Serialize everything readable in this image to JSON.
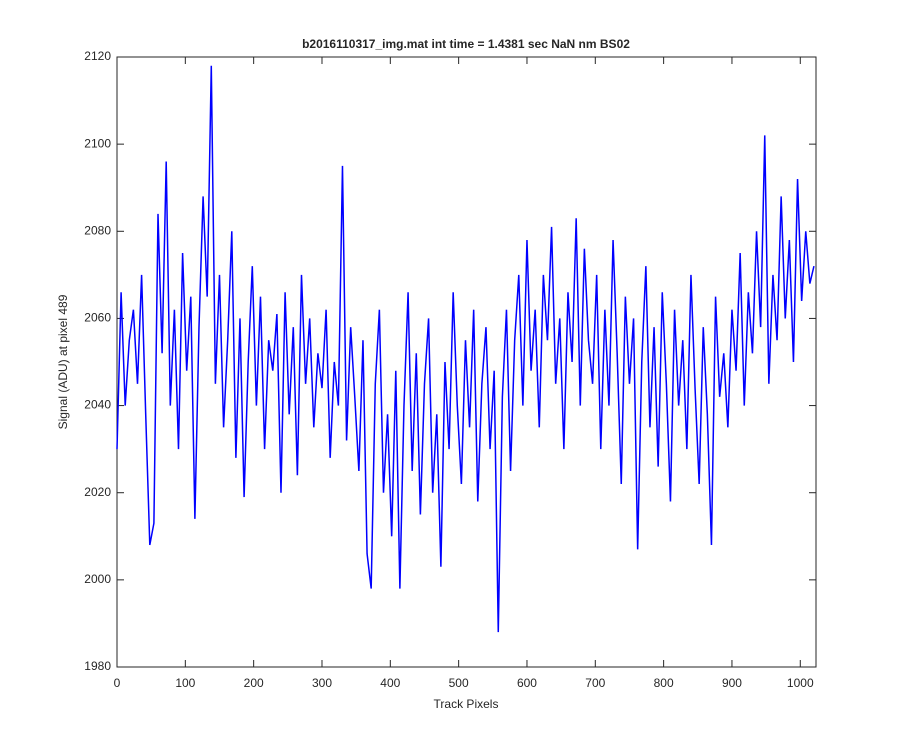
{
  "chart_data": {
    "type": "line",
    "title": "b2016110317_img.mat int time = 1.4381 sec  NaN nm BS02",
    "x_label": "Track Pixels",
    "y_label": "Signal (ADU) at pixel 489",
    "color": "#0000ff",
    "x": [
      0,
      6,
      12,
      18,
      24,
      30,
      36,
      42,
      48,
      54,
      60,
      66,
      72,
      78,
      84,
      90,
      96,
      102,
      108,
      114,
      120,
      126,
      132,
      138,
      144,
      150,
      156,
      162,
      168,
      174,
      180,
      186,
      192,
      198,
      204,
      210,
      216,
      222,
      228,
      234,
      240,
      246,
      252,
      258,
      264,
      270,
      276,
      282,
      288,
      294,
      300,
      306,
      312,
      318,
      324,
      330,
      336,
      342,
      348,
      354,
      360,
      366,
      372,
      378,
      384,
      390,
      396,
      402,
      408,
      414,
      420,
      426,
      432,
      438,
      444,
      450,
      456,
      462,
      468,
      474,
      480,
      486,
      492,
      498,
      504,
      510,
      516,
      522,
      528,
      534,
      540,
      546,
      552,
      558,
      564,
      570,
      576,
      582,
      588,
      594,
      600,
      606,
      612,
      618,
      624,
      630,
      636,
      642,
      648,
      654,
      660,
      666,
      672,
      678,
      684,
      690,
      696,
      702,
      708,
      714,
      720,
      726,
      732,
      738,
      744,
      750,
      756,
      762,
      768,
      774,
      780,
      786,
      792,
      798,
      804,
      810,
      816,
      822,
      828,
      834,
      840,
      846,
      852,
      858,
      864,
      870,
      876,
      882,
      888,
      894,
      900,
      906,
      912,
      918,
      924,
      930,
      936,
      942,
      948,
      954,
      960,
      966,
      972,
      978,
      984,
      990,
      996,
      1002,
      1008,
      1014,
      1020
    ],
    "values": [
      2030,
      2066,
      2040,
      2055,
      2062,
      2045,
      2070,
      2038,
      2008,
      2013,
      2084,
      2052,
      2096,
      2040,
      2062,
      2030,
      2075,
      2048,
      2065,
      2014,
      2058,
      2088,
      2065,
      2118,
      2045,
      2070,
      2035,
      2055,
      2080,
      2028,
      2060,
      2019,
      2050,
      2072,
      2040,
      2065,
      2030,
      2055,
      2048,
      2061,
      2020,
      2066,
      2038,
      2058,
      2024,
      2070,
      2045,
      2060,
      2035,
      2052,
      2044,
      2062,
      2028,
      2050,
      2040,
      2095,
      2032,
      2058,
      2042,
      2025,
      2055,
      2006,
      1998,
      2045,
      2062,
      2020,
      2038,
      2010,
      2048,
      1998,
      2040,
      2066,
      2025,
      2052,
      2015,
      2045,
      2060,
      2020,
      2038,
      2003,
      2050,
      2030,
      2066,
      2040,
      2022,
      2055,
      2035,
      2062,
      2018,
      2045,
      2058,
      2030,
      2048,
      1988,
      2042,
      2062,
      2025,
      2055,
      2070,
      2040,
      2078,
      2048,
      2062,
      2035,
      2070,
      2055,
      2081,
      2045,
      2060,
      2030,
      2066,
      2050,
      2083,
      2040,
      2076,
      2055,
      2045,
      2070,
      2030,
      2062,
      2040,
      2078,
      2052,
      2022,
      2065,
      2045,
      2060,
      2007,
      2050,
      2072,
      2035,
      2058,
      2026,
      2066,
      2045,
      2018,
      2062,
      2040,
      2055,
      2030,
      2070,
      2044,
      2022,
      2058,
      2038,
      2008,
      2065,
      2042,
      2052,
      2035,
      2062,
      2048,
      2075,
      2040,
      2066,
      2052,
      2080,
      2058,
      2102,
      2045,
      2070,
      2055,
      2088,
      2060,
      2078,
      2050,
      2092,
      2064,
      2080,
      2068,
      2072
    ],
    "xlim": [
      0,
      1023
    ],
    "ylim": [
      1980,
      2120
    ],
    "xticks": [
      0,
      100,
      200,
      300,
      400,
      500,
      600,
      700,
      800,
      900,
      1000
    ],
    "yticks": [
      1980,
      2000,
      2020,
      2040,
      2060,
      2080,
      2100,
      2120
    ]
  }
}
